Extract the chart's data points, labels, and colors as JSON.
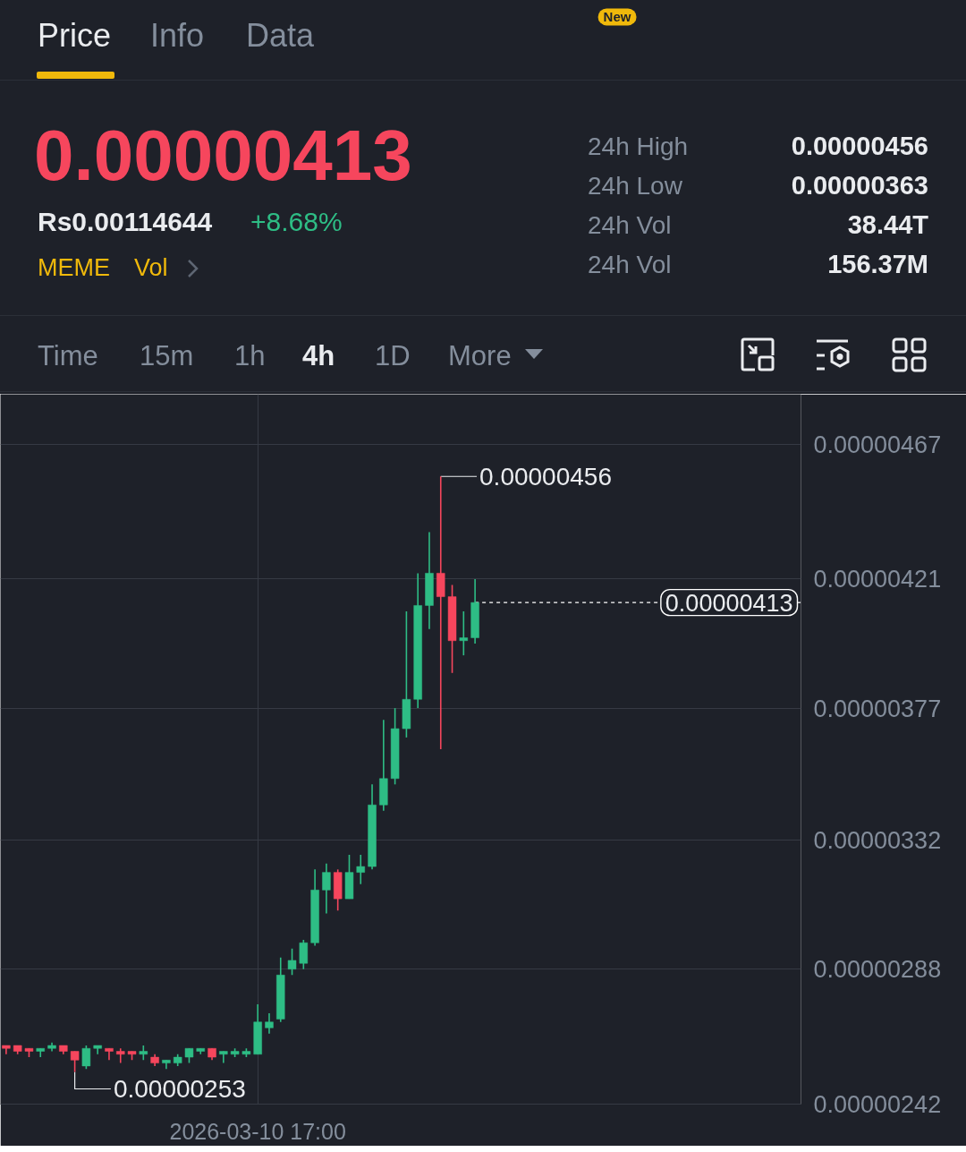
{
  "chart_data": {
    "type": "candlestick",
    "categories": [
      null,
      null,
      null,
      null,
      null,
      null,
      null,
      null,
      null,
      null,
      null,
      null,
      null,
      null,
      null,
      null,
      null,
      null,
      null,
      null,
      null,
      null,
      "2026-03-10 17:00",
      null,
      null,
      null,
      null,
      null,
      null,
      null,
      null,
      null,
      null,
      null,
      null,
      null,
      null,
      null,
      null,
      null,
      null,
      null,
      null,
      null,
      null,
      null,
      null,
      null,
      null,
      null,
      null,
      null,
      null,
      null,
      null,
      null,
      null,
      null,
      null,
      null,
      null,
      null,
      null,
      null,
      null,
      null,
      null,
      null,
      null,
      null
    ],
    "ohlc": [
      [
        2.62e-06,
        2.62e-06,
        2.59e-06,
        2.61e-06
      ],
      [
        2.62e-06,
        2.62e-06,
        2.59e-06,
        2.6e-06
      ],
      [
        2.61e-06,
        2.61e-06,
        2.58e-06,
        2.6e-06
      ],
      [
        2.6e-06,
        2.61e-06,
        2.58e-06,
        2.61e-06
      ],
      [
        2.61e-06,
        2.63e-06,
        2.6e-06,
        2.62e-06
      ],
      [
        2.62e-06,
        2.62e-06,
        2.59e-06,
        2.6e-06
      ],
      [
        2.6e-06,
        2.6e-06,
        2.53e-06,
        2.57e-06
      ],
      [
        2.55e-06,
        2.62e-06,
        2.54e-06,
        2.61e-06
      ],
      [
        2.61e-06,
        2.62e-06,
        2.59e-06,
        2.62e-06
      ],
      [
        2.61e-06,
        2.61e-06,
        2.57e-06,
        2.6e-06
      ],
      [
        2.6e-06,
        2.61e-06,
        2.56e-06,
        2.59e-06
      ],
      [
        2.6e-06,
        2.6e-06,
        2.57e-06,
        2.59e-06
      ],
      [
        2.59e-06,
        2.62e-06,
        2.57e-06,
        2.6e-06
      ],
      [
        2.58e-06,
        2.59e-06,
        2.55e-06,
        2.56e-06
      ],
      [
        2.56e-06,
        2.57e-06,
        2.54e-06,
        2.57e-06
      ],
      [
        2.56e-06,
        2.59e-06,
        2.55e-06,
        2.58e-06
      ],
      [
        2.58e-06,
        2.61e-06,
        2.56e-06,
        2.61e-06
      ],
      [
        2.6e-06,
        2.61e-06,
        2.59e-06,
        2.61e-06
      ],
      [
        2.61e-06,
        2.61e-06,
        2.57e-06,
        2.58e-06
      ],
      [
        2.59e-06,
        2.6e-06,
        2.56e-06,
        2.6e-06
      ],
      [
        2.59e-06,
        2.61e-06,
        2.58e-06,
        2.6e-06
      ],
      [
        2.59e-06,
        2.61e-06,
        2.58e-06,
        2.6e-06
      ],
      [
        2.59e-06,
        2.76e-06,
        2.59e-06,
        2.7e-06
      ],
      [
        2.68e-06,
        2.73e-06,
        2.66e-06,
        2.7e-06
      ],
      [
        2.71e-06,
        2.92e-06,
        2.7e-06,
        2.86e-06
      ],
      [
        2.88e-06,
        2.95e-06,
        2.86e-06,
        2.91e-06
      ],
      [
        2.9e-06,
        2.98e-06,
        2.88e-06,
        2.97e-06
      ],
      [
        2.97e-06,
        3.22e-06,
        2.96e-06,
        3.15e-06
      ],
      [
        3.15e-06,
        3.24e-06,
        3.07e-06,
        3.21e-06
      ],
      [
        3.21e-06,
        3.22e-06,
        3.08e-06,
        3.12e-06
      ],
      [
        3.12e-06,
        3.27e-06,
        3.12e-06,
        3.21e-06
      ],
      [
        3.21e-06,
        3.27e-06,
        3.17e-06,
        3.23e-06
      ],
      [
        3.23e-06,
        3.51e-06,
        3.22e-06,
        3.44e-06
      ],
      [
        3.44e-06,
        3.73e-06,
        3.42e-06,
        3.53e-06
      ],
      [
        3.53e-06,
        3.77e-06,
        3.51e-06,
        3.7e-06
      ],
      [
        3.7e-06,
        4.1e-06,
        3.67e-06,
        3.8e-06
      ],
      [
        3.8e-06,
        4.23e-06,
        3.77e-06,
        4.12e-06
      ],
      [
        4.12e-06,
        4.37e-06,
        4.04e-06,
        4.23e-06
      ],
      [
        4.23e-06,
        4.56e-06,
        3.63e-06,
        4.15e-06
      ],
      [
        4.15e-06,
        4.19e-06,
        3.89e-06,
        4e-06
      ],
      [
        4e-06,
        4.1e-06,
        3.95e-06,
        4.01e-06
      ],
      [
        4.01e-06,
        4.21e-06,
        3.99e-06,
        4.13e-06
      ],
      null,
      null,
      null,
      null,
      null,
      null,
      null,
      null,
      null,
      null,
      null,
      null,
      null,
      null,
      null,
      null,
      null,
      null,
      null,
      null,
      null,
      null,
      null,
      null,
      null,
      null,
      null,
      null
    ],
    "colors": [
      "#f6465d",
      "#f6465d",
      "#f6465d",
      "#2ebd85",
      "#2ebd85",
      "#f6465d",
      "#f6465d",
      "#2ebd85",
      "#2ebd85",
      "#f6465d",
      "#f6465d",
      "#f6465d",
      "#2ebd85",
      "#f6465d",
      "#2ebd85",
      "#2ebd85",
      "#2ebd85",
      "#2ebd85",
      "#f6465d",
      "#2ebd85",
      "#2ebd85",
      "#2ebd85",
      "#2ebd85",
      "#2ebd85",
      "#2ebd85",
      "#2ebd85",
      "#2ebd85",
      "#2ebd85",
      "#2ebd85",
      "#f6465d",
      "#2ebd85",
      "#2ebd85",
      "#2ebd85",
      "#2ebd85",
      "#2ebd85",
      "#2ebd85",
      "#2ebd85",
      "#2ebd85",
      "#f6465d",
      "#f6465d",
      "#2ebd85",
      "#2ebd85",
      null,
      null,
      null,
      null,
      null,
      null,
      null,
      null,
      null,
      null,
      null,
      null,
      null,
      null,
      null,
      null,
      null,
      null,
      null,
      null,
      null,
      null,
      null,
      null,
      null,
      null,
      null,
      null
    ],
    "ylim": [
      2.42e-06,
      4.84e-06
    ],
    "yticks": [
      {
        "value": 4.67e-06,
        "label": "0.00000467"
      },
      {
        "value": 4.21e-06,
        "label": "0.00000421"
      },
      {
        "value": 3.77e-06,
        "label": "0.00000377"
      },
      {
        "value": 3.32e-06,
        "label": "0.00000332"
      },
      {
        "value": 2.88e-06,
        "label": "0.00000288"
      },
      {
        "value": 2.42e-06,
        "label": "0.00000242"
      }
    ],
    "grid": true,
    "ref_lines": [
      {
        "axis": "y",
        "value": 4.13e-06,
        "label": "0.00000413",
        "color": "#ffffff",
        "line_style": "dashed"
      }
    ],
    "annotations": [
      "Price",
      "Info",
      "Data",
      "New",
      "0.00000413",
      "Rs0.00114644",
      "+8.68%",
      "MEME",
      "Vol",
      "24h High",
      "0.00000456",
      "24h Low",
      "0.00000363",
      "24h Vol",
      "38.44T",
      "24h Vol",
      "156.37M",
      "Time",
      "15m",
      "1h",
      "4h",
      "1D",
      "More",
      "0.00000456",
      "0.00000253"
    ]
  }
}
